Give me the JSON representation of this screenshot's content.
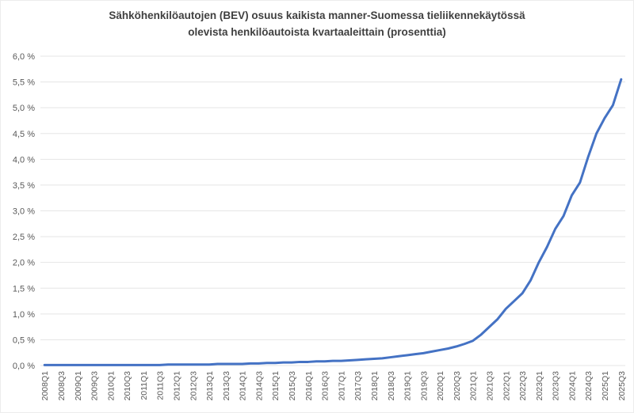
{
  "title": {
    "line1": "Sähköhenkilöautojen (BEV) osuus kaikista manner-Suomessa tieliikennekäytössä",
    "line2": "olevista henkilöautoista kvartaaleittain (prosenttia)"
  },
  "chart_data": {
    "type": "line",
    "title": "Sähköhenkilöautojen (BEV) osuus kaikista manner-Suomessa tieliikennekäytössä olevista henkilöautoista kvartaaleittain (prosenttia)",
    "xlabel": "",
    "ylabel": "",
    "ylim": [
      0,
      6
    ],
    "grid": true,
    "legend_position": "none",
    "line_color": "#4472C4",
    "gridline_color": "#E5E5E5",
    "tick_label_color": "#595959",
    "title_color": "#404040",
    "y_ticks": [
      {
        "value": 6.0,
        "label": "6,0 %"
      },
      {
        "value": 5.5,
        "label": "5,5 %"
      },
      {
        "value": 5.0,
        "label": "5,0 %"
      },
      {
        "value": 4.5,
        "label": "4,5 %"
      },
      {
        "value": 4.0,
        "label": "4,0 %"
      },
      {
        "value": 3.5,
        "label": "3,5 %"
      },
      {
        "value": 3.0,
        "label": "3,0 %"
      },
      {
        "value": 2.5,
        "label": "2,5 %"
      },
      {
        "value": 2.0,
        "label": "2,0 %"
      },
      {
        "value": 1.5,
        "label": "1,5 %"
      },
      {
        "value": 1.0,
        "label": "1,0 %"
      },
      {
        "value": 0.5,
        "label": "0,5 %"
      },
      {
        "value": 0.0,
        "label": "0,0 %"
      }
    ],
    "x": [
      "2008Q1",
      "2008Q2",
      "2008Q3",
      "2008Q4",
      "2009Q1",
      "2009Q2",
      "2009Q3",
      "2009Q4",
      "2010Q1",
      "2010Q2",
      "2010Q3",
      "2010Q4",
      "2011Q1",
      "2011Q2",
      "2011Q3",
      "2011Q4",
      "2012Q1",
      "2012Q2",
      "2012Q3",
      "2012Q4",
      "2013Q1",
      "2013Q2",
      "2013Q3",
      "2013Q4",
      "2014Q1",
      "2014Q2",
      "2014Q3",
      "2014Q4",
      "2015Q1",
      "2015Q2",
      "2015Q3",
      "2015Q4",
      "2016Q1",
      "2016Q2",
      "2016Q3",
      "2016Q4",
      "2017Q1",
      "2017Q2",
      "2017Q3",
      "2017Q4",
      "2018Q1",
      "2018Q2",
      "2018Q3",
      "2018Q4",
      "2019Q1",
      "2019Q2",
      "2019Q3",
      "2019Q4",
      "2020Q1",
      "2020Q2",
      "2020Q3",
      "2020Q4",
      "2021Q1",
      "2021Q2",
      "2021Q3",
      "2021Q4",
      "2022Q1",
      "2022Q2",
      "2022Q3",
      "2022Q4",
      "2023Q1",
      "2023Q2",
      "2023Q3",
      "2023Q4",
      "2024Q1",
      "2024Q2",
      "2024Q3",
      "2024Q4",
      "2025Q1",
      "2025Q2",
      "2025Q3"
    ],
    "values": [
      0.01,
      0.01,
      0.01,
      0.01,
      0.01,
      0.01,
      0.01,
      0.01,
      0.01,
      0.01,
      0.01,
      0.01,
      0.01,
      0.01,
      0.01,
      0.02,
      0.02,
      0.02,
      0.02,
      0.02,
      0.02,
      0.03,
      0.03,
      0.03,
      0.03,
      0.04,
      0.04,
      0.05,
      0.05,
      0.06,
      0.06,
      0.07,
      0.07,
      0.08,
      0.08,
      0.09,
      0.09,
      0.1,
      0.11,
      0.12,
      0.13,
      0.14,
      0.16,
      0.18,
      0.2,
      0.22,
      0.24,
      0.27,
      0.3,
      0.33,
      0.37,
      0.42,
      0.48,
      0.6,
      0.75,
      0.9,
      1.1,
      1.25,
      1.4,
      1.65,
      2.0,
      2.3,
      2.65,
      2.9,
      3.3,
      3.55,
      4.05,
      4.5,
      4.8,
      5.05,
      5.55
    ],
    "x_tick_labels": [
      "2008Q1",
      "2008Q3",
      "2009Q1",
      "2009Q3",
      "2010Q1",
      "2010Q3",
      "2011Q1",
      "2011Q3",
      "2012Q1",
      "2012Q3",
      "2013Q1",
      "2013Q3",
      "2014Q1",
      "2014Q3",
      "2015Q1",
      "2015Q3",
      "2016Q1",
      "2016Q3",
      "2017Q1",
      "2017Q3",
      "2018Q1",
      "2018Q3",
      "2019Q1",
      "2019Q3",
      "2020Q1",
      "2020Q3",
      "2021Q1",
      "2021Q3",
      "2022Q1",
      "2022Q3",
      "2023Q1",
      "2023Q3",
      "2024Q1",
      "2024Q3",
      "2025Q1",
      "2025Q3"
    ]
  }
}
